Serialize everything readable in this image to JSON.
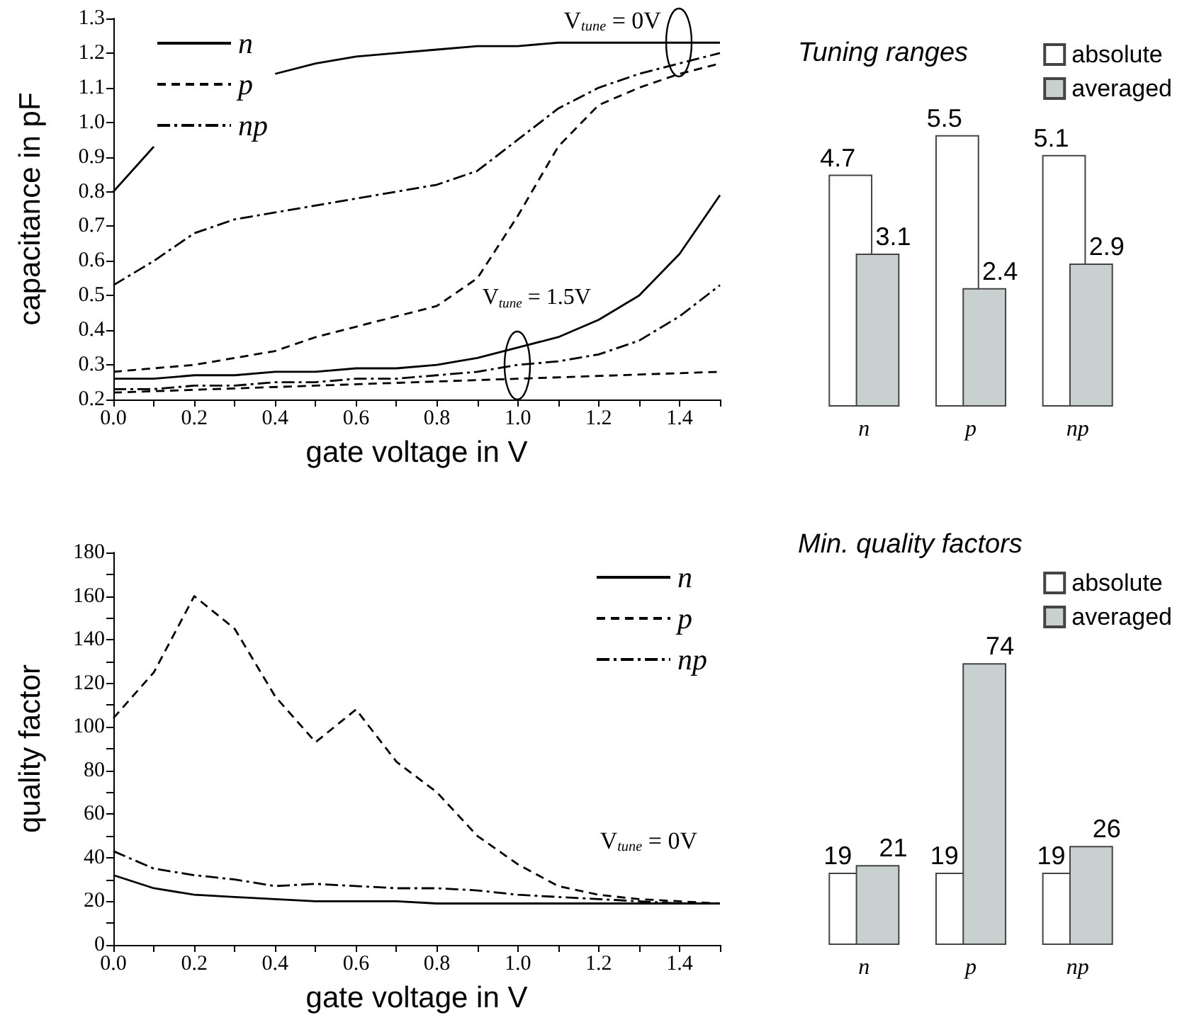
{
  "chart_data": [
    {
      "type": "line",
      "xlabel": "gate voltage in V",
      "ylabel": "capacitance in pF",
      "x": [
        0,
        0.1,
        0.2,
        0.3,
        0.4,
        0.5,
        0.6,
        0.7,
        0.8,
        0.9,
        1.0,
        1.1,
        1.2,
        1.3,
        1.4,
        1.5
      ],
      "xlim": [
        0,
        1.5
      ],
      "xticks": [
        {
          "value": 0,
          "label": "0.0"
        },
        {
          "value": 0.1,
          "label": null
        },
        0.2,
        {
          "value": 0.3,
          "label": null
        },
        0.4,
        {
          "value": 0.5,
          "label": null
        },
        0.6,
        {
          "value": 0.7,
          "label": null
        },
        0.8,
        {
          "value": 0.9,
          "label": null
        },
        {
          "value": 1,
          "label": "1.0"
        },
        {
          "value": 1.1,
          "label": null
        },
        1.2,
        {
          "value": 1.3,
          "label": null
        },
        1.4,
        {
          "value": 1.5,
          "label": null
        }
      ],
      "ylim": [
        0.2,
        1.3
      ],
      "yticks": [
        0.2,
        0.3,
        0.4,
        0.5,
        0.6,
        0.7,
        0.8,
        0.9,
        {
          "value": 1,
          "label": "1.0"
        },
        1.1,
        1.2,
        1.3
      ],
      "grid": false,
      "legend": "top left",
      "marker": "none",
      "annotations": [
        {
          "text": "V$_{tune}$ = 0V",
          "x": 1.4,
          "y": 1.23
        },
        {
          "text": "V$_{tune}$ = 1.5V",
          "x": 1.0,
          "y": 0.3
        }
      ],
      "series": [
        {
          "name": "n",
          "color": "#000000",
          "line_style": "solid",
          "values": [
            0.8,
            0.93,
            null,
            null,
            1.14,
            1.17,
            1.19,
            1.2,
            1.21,
            1.22,
            1.22,
            1.23,
            1.23,
            1.23,
            1.23,
            1.23
          ]
        },
        {
          "name": "p",
          "color": "#000000",
          "line_style": "dashed",
          "values": [
            0.28,
            0.29,
            0.3,
            0.32,
            0.34,
            0.38,
            0.41,
            0.44,
            0.47,
            0.55,
            0.73,
            0.93,
            1.05,
            1.1,
            1.14,
            1.17
          ]
        },
        {
          "name": "np",
          "color": "#000000",
          "line_style": "dashdot",
          "values": [
            0.53,
            0.6,
            0.68,
            0.72,
            0.74,
            0.76,
            0.78,
            0.8,
            0.82,
            0.86,
            0.95,
            1.04,
            1.1,
            1.14,
            1.17,
            1.2
          ]
        },
        {
          "color": "#000000",
          "line_style": "solid",
          "values": [
            0.26,
            0.26,
            0.27,
            0.27,
            0.28,
            0.28,
            0.29,
            0.29,
            0.3,
            0.32,
            0.35,
            0.38,
            0.43,
            0.5,
            0.62,
            0.79
          ]
        },
        {
          "color": "#000000",
          "line_style": "dashed",
          "x": [
            0,
            0.5,
            1.0,
            1.5
          ],
          "values": [
            0.22,
            0.24,
            0.26,
            0.28
          ]
        },
        {
          "color": "#000000",
          "line_style": "dashdot",
          "values": [
            0.23,
            0.23,
            0.24,
            0.24,
            0.25,
            0.25,
            0.26,
            0.26,
            0.27,
            0.28,
            0.3,
            0.31,
            0.33,
            0.37,
            0.44,
            0.53
          ]
        }
      ]
    },
    {
      "type": "bar",
      "title": "Tuning ranges",
      "categories": [
        "n",
        "p",
        "np"
      ],
      "data_labels": true,
      "legend": "top right",
      "tick_labels": "x",
      "series": [
        {
          "name": "absolute",
          "color": "#ffffff",
          "values": [
            4.7,
            5.5,
            5.1
          ]
        },
        {
          "name": "averaged",
          "color": "#c8d0d0",
          "values": [
            3.1,
            2.4,
            2.9
          ]
        }
      ]
    },
    {
      "type": "line",
      "xlabel": "gate voltage in V",
      "ylabel": "quality factor",
      "x": [
        0,
        0.1,
        0.2,
        0.3,
        0.4,
        0.5,
        0.6,
        0.7,
        0.8,
        0.9,
        1.0,
        1.1,
        1.2,
        1.3,
        1.4,
        1.5
      ],
      "xlim": [
        0,
        1.5
      ],
      "xticks": [
        {
          "value": 0,
          "label": "0.0"
        },
        {
          "value": 0.1,
          "label": null
        },
        0.2,
        {
          "value": 0.3,
          "label": null
        },
        0.4,
        {
          "value": 0.5,
          "label": null
        },
        0.6,
        {
          "value": 0.7,
          "label": null
        },
        0.8,
        {
          "value": 0.9,
          "label": null
        },
        {
          "value": 1,
          "label": "1.0"
        },
        {
          "value": 1.1,
          "label": null
        },
        1.2,
        {
          "value": 1.3,
          "label": null
        },
        1.4,
        {
          "value": 1.5,
          "label": null
        }
      ],
      "ylim": [
        0,
        180
      ],
      "yticks": [
        0,
        {
          "value": 10,
          "label": null
        },
        20,
        {
          "value": 30,
          "label": null
        },
        40,
        {
          "value": 50,
          "label": null
        },
        60,
        {
          "value": 70,
          "label": null
        },
        80,
        {
          "value": 90,
          "label": null
        },
        100,
        {
          "value": 110,
          "label": null
        },
        120,
        {
          "value": 130,
          "label": null
        },
        140,
        {
          "value": 150,
          "label": null
        },
        160,
        {
          "value": 170,
          "label": null
        },
        180
      ],
      "grid": false,
      "legend": "top right",
      "marker": "none",
      "annotations": [
        "V$_{tune}$ = 0V"
      ],
      "series": [
        {
          "name": "n",
          "color": "#000000",
          "line_style": "solid",
          "values": [
            32,
            26,
            23,
            22,
            21,
            20,
            20,
            20,
            19,
            19,
            19,
            19,
            19,
            19,
            19,
            19
          ]
        },
        {
          "name": "p",
          "color": "#000000",
          "line_style": "dashed",
          "values": [
            104,
            125,
            160,
            145,
            114,
            93,
            108,
            84,
            70,
            50,
            37,
            27,
            23,
            21,
            20,
            19
          ]
        },
        {
          "name": "np",
          "color": "#000000",
          "line_style": "dashdot",
          "values": [
            43,
            35,
            32,
            30,
            27,
            28,
            27,
            26,
            26,
            25,
            23,
            22,
            21,
            20,
            19,
            19
          ]
        }
      ]
    },
    {
      "type": "bar",
      "title": "Min. quality factors",
      "categories": [
        "n",
        "p",
        "np"
      ],
      "data_labels": true,
      "legend": "top right",
      "tick_labels": "x",
      "series": [
        {
          "name": "absolute",
          "color": "#ffffff",
          "values": [
            19,
            19,
            19
          ]
        },
        {
          "name": "averaged",
          "color": "#c8d0d0",
          "values": [
            21,
            74,
            26
          ]
        }
      ]
    }
  ]
}
